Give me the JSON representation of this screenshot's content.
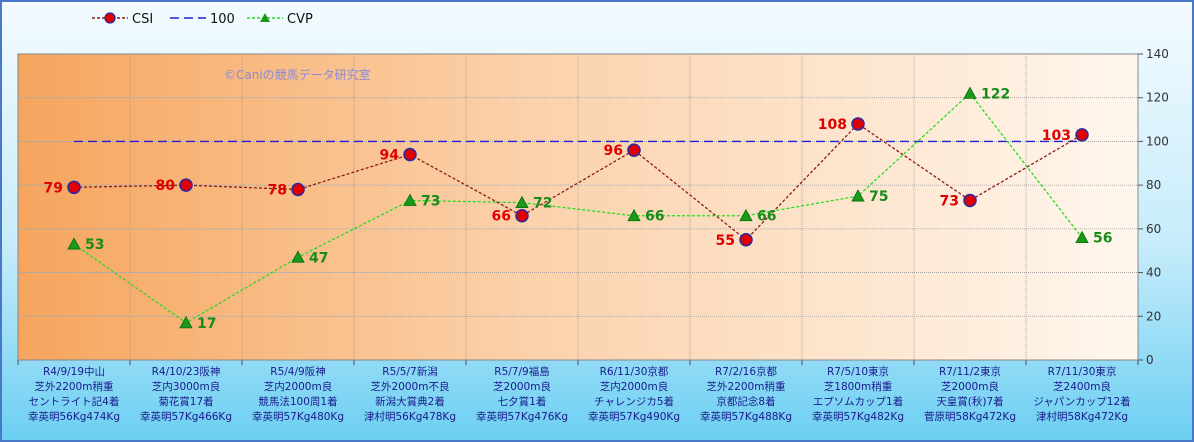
{
  "chart_data": {
    "type": "line",
    "categories": [
      [
        "R4/9/19中山",
        "芝外2200m稍重",
        "セントライト記4着",
        "幸英明56Kg474Kg"
      ],
      [
        "R4/10/23阪神",
        "芝内3000m良",
        "菊花賞17着",
        "幸英明57Kg466Kg"
      ],
      [
        "R5/4/9阪神",
        "芝内2000m良",
        "競馬法100周1着",
        "幸英明57Kg480Kg"
      ],
      [
        "R5/5/7新潟",
        "芝外2000m不良",
        "新潟大賞典2着",
        "津村明56Kg478Kg"
      ],
      [
        "R5/7/9福島",
        "芝2000m良",
        "七夕賞1着",
        "幸英明57Kg476Kg"
      ],
      [
        "R6/11/30京都",
        "芝内2000m良",
        "チャレンジカ5着",
        "幸英明57Kg490Kg"
      ],
      [
        "R7/2/16京都",
        "芝外2200m稍重",
        "京都記念8着",
        "幸英明57Kg488Kg"
      ],
      [
        "R7/5/10東京",
        "芝1800m稍重",
        "エプソムカップ1着",
        "幸英明57Kg482Kg"
      ],
      [
        "R7/11/2東京",
        "芝2000m良",
        "天皇賞(秋)7着",
        "菅原明58Kg472Kg"
      ],
      [
        "R7/11/30東京",
        "芝2400m良",
        "ジャパンカップ12着",
        "津村明58Kg472Kg"
      ]
    ],
    "series": [
      {
        "name": "CSI",
        "values": [
          79,
          80,
          78,
          94,
          66,
          96,
          55,
          108,
          73,
          103
        ],
        "color": "#8b1a1a",
        "marker_color": "#e00000",
        "label_color": "#e00000"
      },
      {
        "name": "100",
        "values": [
          100,
          100,
          100,
          100,
          100,
          100,
          100,
          100,
          100,
          100
        ],
        "color": "#2020d0"
      },
      {
        "name": "CVP",
        "values": [
          53,
          17,
          47,
          73,
          72,
          66,
          66,
          75,
          122,
          56
        ],
        "color": "#22dd22",
        "marker_color": "#1a9a1a",
        "label_color": "#1a8a1a"
      }
    ],
    "yticks": [
      "0",
      "20",
      "40",
      "60",
      "80",
      "100",
      "120",
      "140"
    ],
    "ylim": [
      0,
      140
    ],
    "grid": true,
    "legend_position": "top-left",
    "watermark": "©Caniの競馬データ研究室"
  }
}
